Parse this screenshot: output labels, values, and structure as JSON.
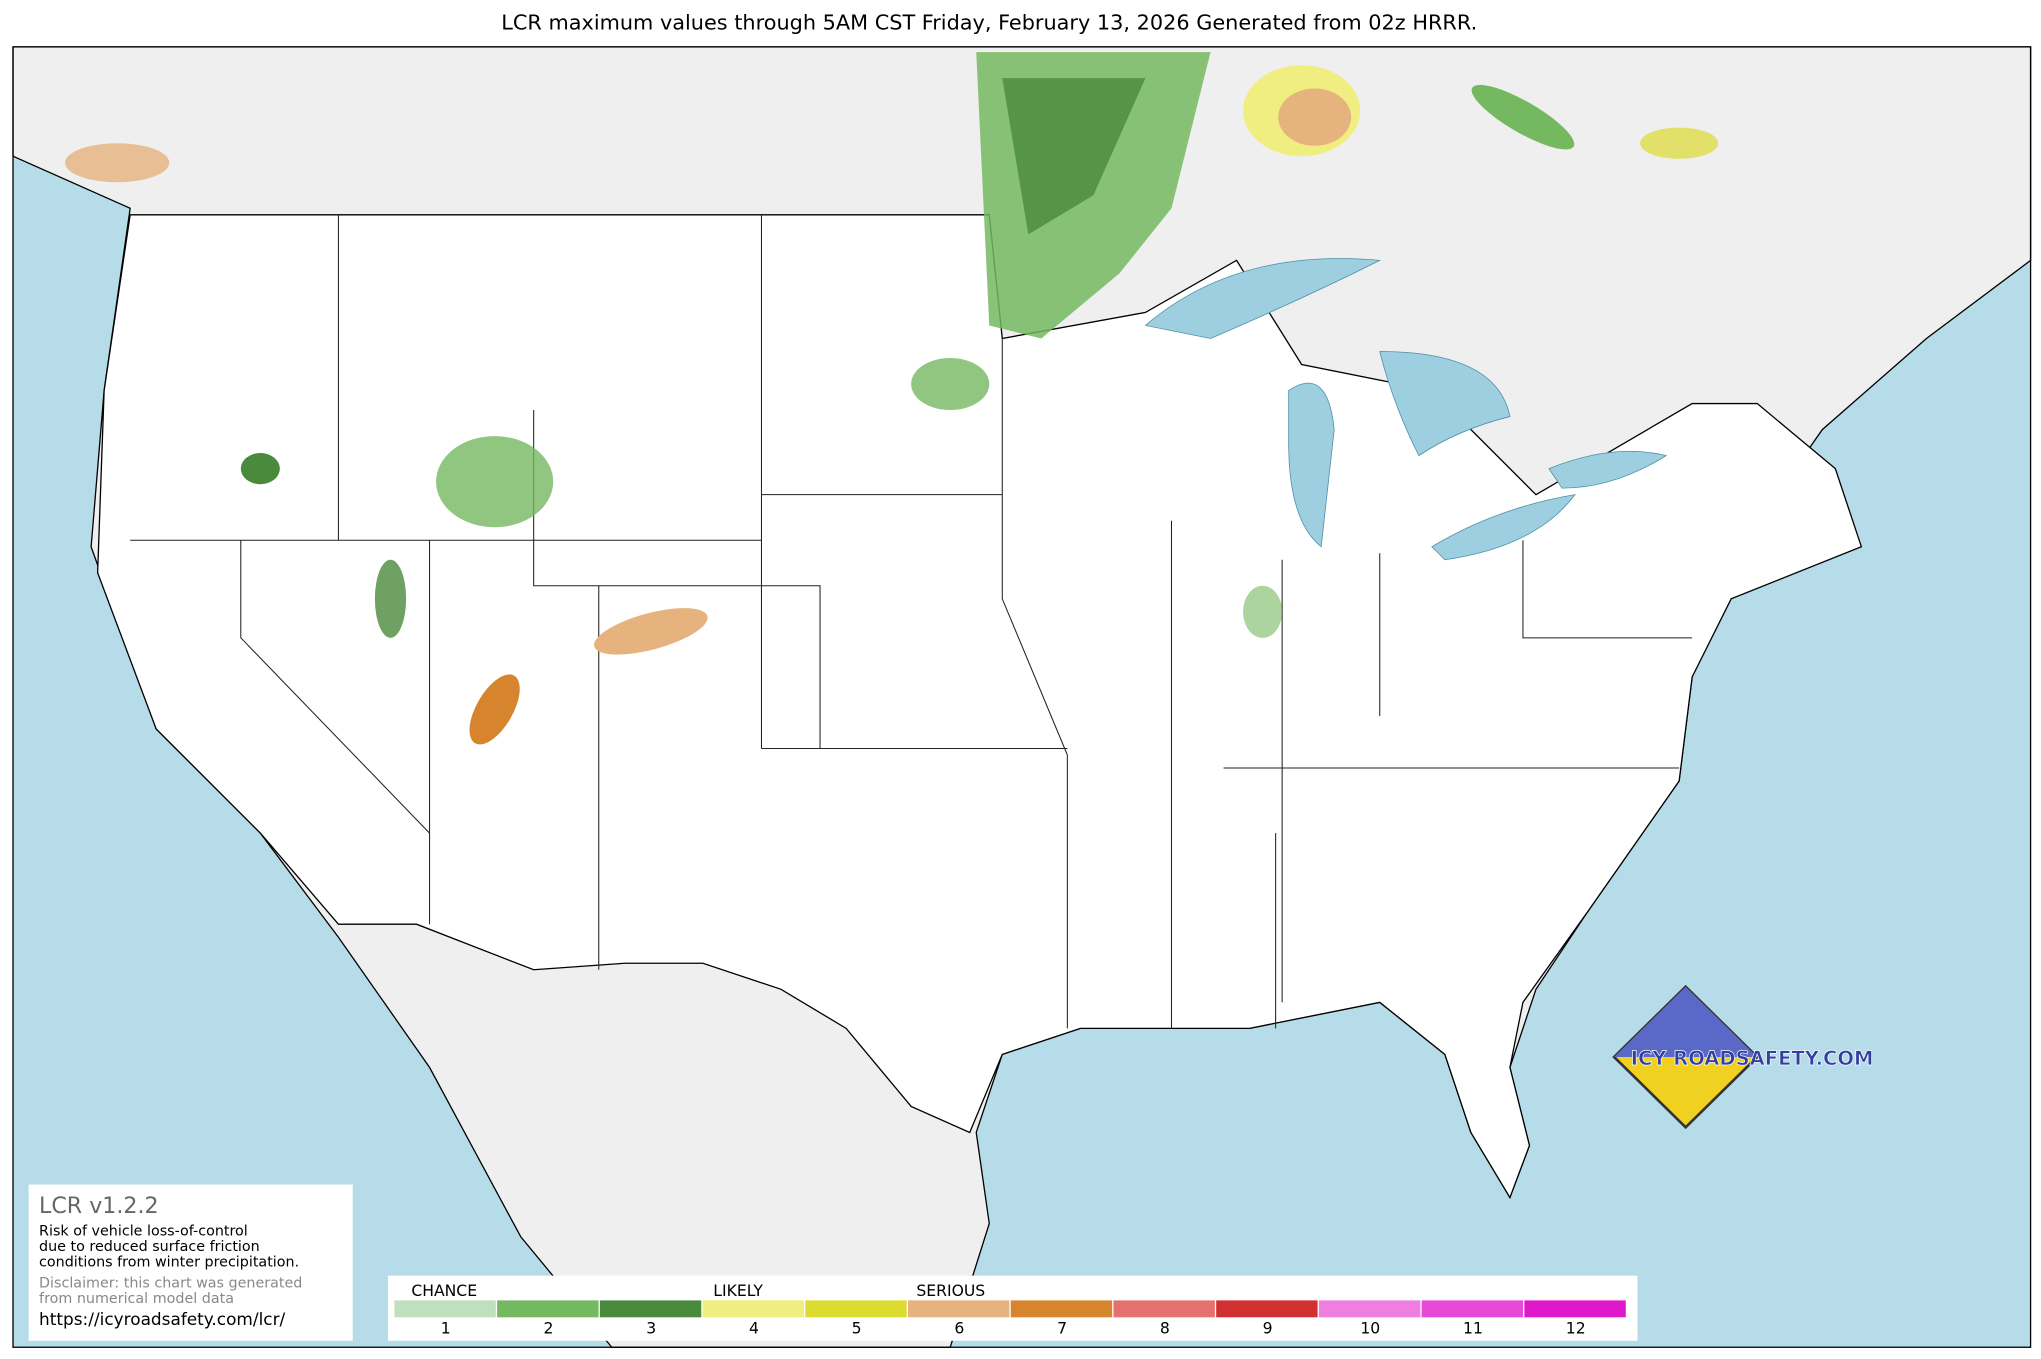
{
  "title": "LCR maximum values through 5AM CST Friday, February 13, 2026 Generated from 02z HRRR.",
  "info_box": {
    "version": "LCR v1.2.2",
    "description": [
      "Risk of vehicle loss-of-control",
      "due to reduced surface friction",
      "conditions from winter precipitation."
    ],
    "disclaimer": [
      "Disclaimer: this chart was generated",
      "from numerical model data"
    ],
    "url": "https://icyroadsafety.com/lcr/"
  },
  "legend": {
    "groups": [
      "CHANCE",
      "LIKELY",
      "SERIOUS"
    ],
    "levels": [
      1,
      2,
      3,
      4,
      5,
      6,
      7,
      8,
      9,
      10,
      11,
      12
    ],
    "colors": [
      "#bfe0bf",
      "#74b85f",
      "#4a8a3c",
      "#f0ee80",
      "#dcdc30",
      "#e6b37e",
      "#d6852e",
      "#e57070",
      "#d03030",
      "#ee7ee0",
      "#e84ad8",
      "#e018cc"
    ]
  },
  "logo": {
    "text": "ICY ROADSAFETY.COM"
  }
}
